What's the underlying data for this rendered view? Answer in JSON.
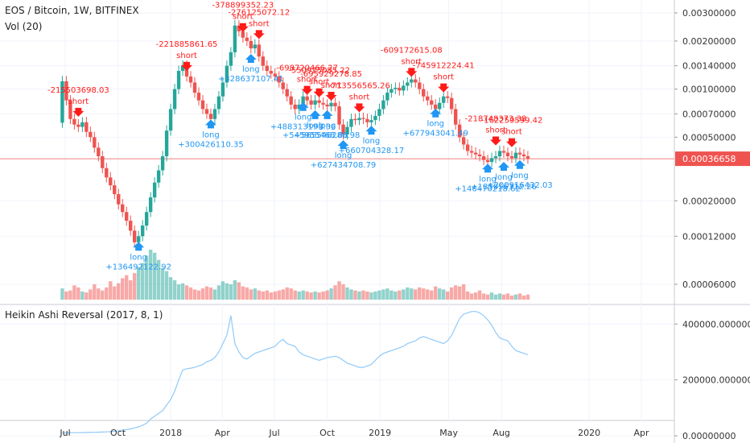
{
  "header": {
    "symbol_line": "EOS / Bitcoin, 1W, BITFINEX",
    "volume_label": "Vol (20)",
    "indicator_label": "Heikin Ashi Reversal (2017, 8, 1)"
  },
  "colors": {
    "up": "#26a69a",
    "down": "#ef5350",
    "short_signal": "#ff1a1a",
    "long_signal": "#2196f3",
    "indicator_line": "#90caf9",
    "price_line": "#f08080",
    "price_tag_bg": "#ef5350",
    "grid": "#f0f3fa"
  },
  "chart_data": [
    {
      "type": "candlestick",
      "title": "EOS / Bitcoin, 1W, BITFINEX",
      "y_scale": "log",
      "y_ticks": [
        "0.00300000",
        "0.00200000",
        "0.00140000",
        "0.00100000",
        "0.00070000",
        "0.00050000",
        "0.00020000",
        "0.00012000",
        "0.00006000"
      ],
      "y_tick_values": [
        0.003,
        0.002,
        0.0014,
        0.001,
        0.0007,
        0.0005,
        0.0002,
        0.00012,
        6e-05
      ],
      "x_ticks": [
        "Jul",
        "Oct",
        "2018",
        "Apr",
        "Jul",
        "Oct",
        "2019",
        "May",
        "Aug",
        "2020",
        "Apr"
      ],
      "x_tick_dates": [
        "2017-07-01",
        "2017-10-01",
        "2018-01-01",
        "2018-04-01",
        "2018-07-01",
        "2018-10-01",
        "2019-01-01",
        "2019-05-01",
        "2019-08-01",
        "2020-01-01",
        "2020-04-01"
      ],
      "last_price": "0.00036658",
      "last_price_value": 0.00036658,
      "start_date": "2017-06-26",
      "closes": [
        0.00112,
        0.00085,
        0.00065,
        0.0006,
        0.00058,
        0.00062,
        0.00054,
        0.0005,
        0.00043,
        0.00038,
        0.00032,
        0.00028,
        0.00025,
        0.00022,
        0.00019,
        0.00017,
        0.00015,
        0.00013,
        0.00011,
        0.00012,
        0.00014,
        0.00017,
        0.00021,
        0.00026,
        0.00031,
        0.00038,
        0.00055,
        0.00075,
        0.001,
        0.0013,
        0.0014,
        0.0012,
        0.0011,
        0.00095,
        0.00085,
        0.00075,
        0.0007,
        0.00065,
        0.00075,
        0.0009,
        0.0011,
        0.0014,
        0.0017,
        0.0025,
        0.0023,
        0.0021,
        0.002,
        0.0018,
        0.0019,
        0.0016,
        0.0014,
        0.0013,
        0.00125,
        0.0012,
        0.0011,
        0.001,
        0.0009,
        0.0008,
        0.00075,
        0.0008,
        0.0009,
        0.00085,
        0.0008,
        0.00085,
        0.00082,
        0.0008,
        0.00078,
        0.00082,
        0.00078,
        0.0006,
        0.00052,
        0.00058,
        0.00065,
        0.00064,
        0.00066,
        0.00065,
        0.00062,
        0.00064,
        0.00068,
        0.00075,
        0.00085,
        0.00095,
        0.001,
        0.00102,
        0.00098,
        0.00105,
        0.0011,
        0.00115,
        0.0011,
        0.001,
        0.0009,
        0.00085,
        0.0008,
        0.00075,
        0.00082,
        0.0009,
        0.00088,
        0.00075,
        0.0006,
        0.0005,
        0.00045,
        0.00041,
        0.0004,
        0.00039,
        0.00038,
        0.00036,
        0.00035,
        0.00037,
        0.00038,
        0.00041,
        0.0004,
        0.00038,
        0.00037,
        0.0004,
        0.00039,
        0.00038,
        0.000367
      ],
      "volume": [
        1.1,
        0.8,
        0.9,
        1.4,
        1.2,
        0.8,
        0.7,
        1.0,
        1.5,
        1.1,
        0.9,
        1.2,
        1.8,
        1.3,
        1.6,
        2.1,
        2.4,
        1.9,
        2.6,
        3.2,
        3.6,
        4.3,
        4.9,
        4.6,
        3.9,
        3.1,
        2.8,
        2.2,
        1.9,
        1.5,
        1.6,
        1.4,
        1.2,
        1.0,
        0.9,
        1.1,
        1.3,
        1.2,
        1.0,
        1.4,
        1.8,
        1.6,
        1.5,
        1.9,
        1.7,
        1.3,
        1.2,
        1.0,
        1.1,
        0.9,
        0.8,
        0.9,
        0.7,
        0.8,
        0.9,
        1.0,
        1.2,
        1.1,
        0.9,
        0.8,
        0.9,
        0.8,
        0.7,
        0.8,
        0.7,
        0.8,
        0.9,
        1.1,
        1.4,
        1.8,
        1.5,
        1.2,
        1.0,
        0.9,
        0.8,
        0.9,
        0.8,
        0.7,
        0.8,
        0.9,
        1.0,
        1.1,
        0.9,
        0.8,
        0.9,
        1.0,
        1.2,
        1.1,
        1.0,
        1.2,
        1.1,
        1.0,
        0.9,
        1.3,
        1.1,
        1.0,
        0.8,
        1.2,
        1.4,
        1.3,
        1.5,
        0.8,
        0.6,
        0.7,
        0.9,
        0.6,
        0.5,
        0.7,
        0.5,
        0.6,
        0.5,
        0.6,
        0.4,
        0.5,
        0.6,
        0.4,
        0.5
      ],
      "signals": [
        {
          "label": "-215503698.03",
          "kind": "short",
          "week": 4,
          "price": 0.00062
        },
        {
          "label": "+136492122.92",
          "kind": "long",
          "week": 19,
          "price": 0.00012
        },
        {
          "label": "-221885861.65",
          "kind": "short",
          "week": 31,
          "price": 0.0012
        },
        {
          "label": "+300426110.35",
          "kind": "long",
          "week": 37,
          "price": 0.0007
        },
        {
          "label": "-378899352.23",
          "kind": "short",
          "week": 45,
          "price": 0.0021
        },
        {
          "label": "-276125072.12",
          "kind": "short",
          "week": 49,
          "price": 0.0019
        },
        {
          "label": "+328637107.41",
          "kind": "long",
          "week": 47,
          "price": 0.0018
        },
        {
          "label": "-698720466.27",
          "kind": "short",
          "week": 61,
          "price": 0.00085
        },
        {
          "label": "-550925085.22",
          "kind": "short",
          "week": 64,
          "price": 0.00082
        },
        {
          "label": "-695929278.85",
          "kind": "short",
          "week": 67,
          "price": 0.00078
        },
        {
          "label": "+488313193.36",
          "kind": "long",
          "week": 60,
          "price": 0.0009
        },
        {
          "label": "+545955468.68",
          "kind": "long",
          "week": 63,
          "price": 0.0008
        },
        {
          "label": "+565546280.98",
          "kind": "long",
          "week": 66,
          "price": 0.0008
        },
        {
          "label": "+627434708.79",
          "kind": "long",
          "week": 70,
          "price": 0.00052
        },
        {
          "label": "-713556565.26",
          "kind": "short",
          "week": 74,
          "price": 0.00066
        },
        {
          "label": "+660704328.17",
          "kind": "long",
          "week": 77,
          "price": 0.00064
        },
        {
          "label": "-609172615.08",
          "kind": "short",
          "week": 87,
          "price": 0.0011
        },
        {
          "label": "-745912224.41",
          "kind": "short",
          "week": 95,
          "price": 0.00088
        },
        {
          "label": "+677943041.49",
          "kind": "long",
          "week": 93,
          "price": 0.00082
        },
        {
          "label": "-218748373.38",
          "kind": "short",
          "week": 108,
          "price": 0.00041
        },
        {
          "label": "-162259599.42",
          "kind": "short",
          "week": 112,
          "price": 0.0004
        },
        {
          "label": "+146470218.62",
          "kind": "long",
          "week": 106,
          "price": 0.00037
        },
        {
          "label": "+185056312.26",
          "kind": "long",
          "week": 110,
          "price": 0.00038
        },
        {
          "label": "+200916432.03",
          "kind": "long",
          "week": 114,
          "price": 0.00039
        }
      ]
    },
    {
      "type": "line",
      "title": "Heikin Ashi Reversal (2017, 8, 1)",
      "y_ticks": [
        "400000.00000000",
        "200000.00000000",
        "0.00000000"
      ],
      "y_tick_values": [
        400000,
        200000,
        0
      ],
      "ylim": [
        -20000,
        470000
      ],
      "start_week": 0,
      "values": [
        10000,
        10000,
        10500,
        11000,
        11000,
        11500,
        12000,
        12000,
        12500,
        13000,
        13500,
        14000,
        15000,
        16000,
        18000,
        20000,
        22000,
        25000,
        28000,
        32000,
        38000,
        45000,
        60000,
        70000,
        80000,
        90000,
        110000,
        130000,
        160000,
        200000,
        235000,
        240000,
        242000,
        245000,
        250000,
        255000,
        265000,
        270000,
        280000,
        300000,
        330000,
        360000,
        430000,
        330000,
        300000,
        280000,
        275000,
        285000,
        295000,
        300000,
        305000,
        310000,
        315000,
        320000,
        335000,
        345000,
        330000,
        325000,
        320000,
        300000,
        290000,
        285000,
        280000,
        275000,
        270000,
        275000,
        280000,
        282000,
        285000,
        280000,
        270000,
        260000,
        255000,
        250000,
        245000,
        245000,
        250000,
        255000,
        270000,
        285000,
        295000,
        300000,
        305000,
        310000,
        315000,
        320000,
        330000,
        335000,
        340000,
        350000,
        355000,
        350000,
        345000,
        340000,
        335000,
        330000,
        340000,
        360000,
        390000,
        420000,
        435000,
        440000,
        445000,
        445000,
        440000,
        430000,
        415000,
        395000,
        370000,
        350000,
        345000,
        340000,
        320000,
        305000,
        300000,
        295000,
        290000
      ]
    }
  ]
}
